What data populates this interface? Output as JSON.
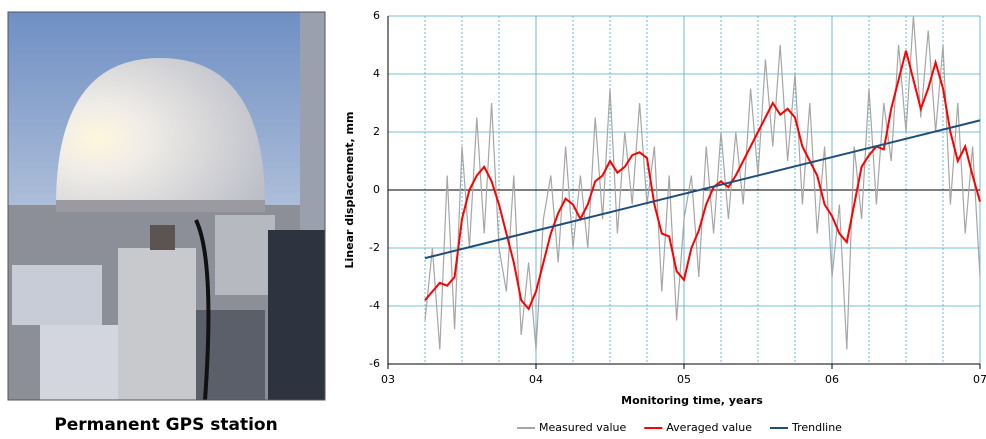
{
  "photo": {
    "caption": "Permanent GPS station"
  },
  "chart_data": {
    "type": "line",
    "xlabel": "Monitoring time, years",
    "ylabel": "Linear displacement, mm",
    "xlim": [
      3,
      7
    ],
    "ylim": [
      -6,
      6
    ],
    "xticks": [
      {
        "value": 3,
        "label": "03"
      },
      {
        "value": 4,
        "label": "04"
      },
      {
        "value": 5,
        "label": "05"
      },
      {
        "value": 6,
        "label": "06"
      },
      {
        "value": 7,
        "label": "07"
      }
    ],
    "xminorticks": [
      3.25,
      3.5,
      3.75,
      4.25,
      4.5,
      4.75,
      5.25,
      5.5,
      5.75,
      6.25,
      6.5,
      6.75
    ],
    "yticks": [
      -6,
      -4,
      -2,
      0,
      2,
      4,
      6
    ],
    "grid": true,
    "legend": "bottom",
    "x": [
      3.25,
      3.3,
      3.35,
      3.4,
      3.45,
      3.5,
      3.55,
      3.6,
      3.65,
      3.7,
      3.75,
      3.8,
      3.85,
      3.9,
      3.95,
      4.0,
      4.05,
      4.1,
      4.15,
      4.2,
      4.25,
      4.3,
      4.35,
      4.4,
      4.45,
      4.5,
      4.55,
      4.6,
      4.65,
      4.7,
      4.75,
      4.8,
      4.85,
      4.9,
      4.95,
      5.0,
      5.05,
      5.1,
      5.15,
      5.2,
      5.25,
      5.3,
      5.35,
      5.4,
      5.45,
      5.5,
      5.55,
      5.6,
      5.65,
      5.7,
      5.75,
      5.8,
      5.85,
      5.9,
      5.95,
      6.0,
      6.05,
      6.1,
      6.15,
      6.2,
      6.25,
      6.3,
      6.35,
      6.4,
      6.45,
      6.5,
      6.55,
      6.6,
      6.65,
      6.7,
      6.75,
      6.8,
      6.85,
      6.9,
      6.95,
      7.0
    ],
    "series": [
      {
        "name": "Measured value",
        "color": "#a6a6a6",
        "values": [
          -4.5,
          -2.0,
          -5.5,
          0.5,
          -4.8,
          1.5,
          -2.0,
          2.5,
          -1.5,
          3.0,
          -2.0,
          -3.5,
          0.5,
          -5.0,
          -2.5,
          -5.5,
          -1.0,
          0.5,
          -2.5,
          1.5,
          -2.0,
          0.5,
          -2.0,
          2.5,
          -1.0,
          3.5,
          -1.5,
          2.0,
          -0.5,
          3.0,
          -0.5,
          1.5,
          -3.5,
          0.5,
          -4.5,
          -1.0,
          0.5,
          -3.0,
          1.5,
          -1.5,
          2.0,
          -1.0,
          2.0,
          -0.5,
          3.5,
          0.5,
          4.5,
          1.5,
          5.0,
          1.0,
          4.0,
          -0.5,
          3.0,
          -1.5,
          1.5,
          -3.0,
          -0.5,
          -5.5,
          1.5,
          -1.0,
          3.5,
          -0.5,
          3.0,
          1.0,
          5.0,
          2.0,
          6.0,
          2.5,
          5.5,
          2.0,
          5.0,
          -0.5,
          3.0,
          -1.5,
          1.5,
          -3.0
        ]
      },
      {
        "name": "Averaged value",
        "color": "#ff0000",
        "values": [
          -3.8,
          -3.5,
          -3.2,
          -3.3,
          -3.0,
          -1.0,
          0.0,
          0.5,
          0.8,
          0.3,
          -0.5,
          -1.5,
          -2.5,
          -3.8,
          -4.1,
          -3.5,
          -2.5,
          -1.5,
          -0.8,
          -0.3,
          -0.5,
          -1.0,
          -0.5,
          0.3,
          0.5,
          1.0,
          0.6,
          0.8,
          1.2,
          1.3,
          1.1,
          -0.5,
          -1.5,
          -1.6,
          -2.8,
          -3.1,
          -2.0,
          -1.4,
          -0.5,
          0.1,
          0.3,
          0.1,
          0.5,
          1.0,
          1.5,
          2.0,
          2.5,
          3.0,
          2.6,
          2.8,
          2.5,
          1.5,
          1.0,
          0.5,
          -0.5,
          -0.9,
          -1.5,
          -1.8,
          -0.5,
          0.8,
          1.2,
          1.5,
          1.4,
          2.8,
          3.8,
          4.8,
          3.8,
          2.8,
          3.5,
          4.4,
          3.5,
          2.0,
          1.0,
          1.5,
          0.5,
          -0.4
        ]
      },
      {
        "name": "Trendline",
        "color": "#1f4e79",
        "x": [
          3.25,
          7
        ],
        "values": [
          -2.35,
          2.4
        ]
      }
    ]
  }
}
